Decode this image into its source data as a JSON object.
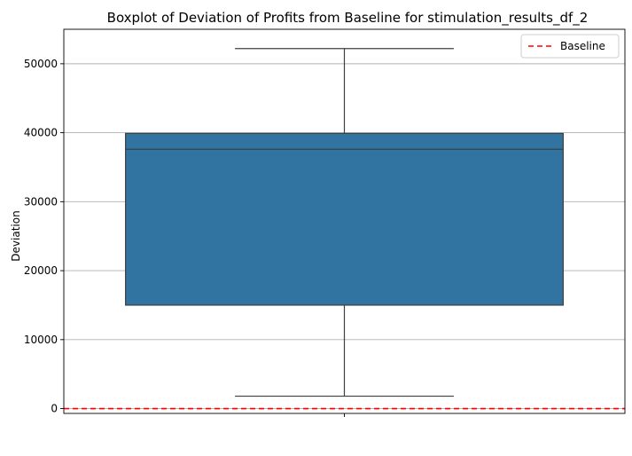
{
  "chart_data": {
    "type": "box",
    "title": "Boxplot of Deviation of Profits from Baseline for stimulation_results_df_2",
    "xlabel": "",
    "ylabel": "Deviation",
    "ylim": [
      -700,
      55000
    ],
    "yticks": [
      0,
      10000,
      20000,
      30000,
      40000,
      50000
    ],
    "ytick_labels": [
      "0",
      "10000",
      "20000",
      "30000",
      "40000",
      "50000"
    ],
    "grid": "horizontal",
    "box": {
      "whisker_low": 1800,
      "q1": 15000,
      "median": 37600,
      "q3": 39900,
      "whisker_high": 52200,
      "color": "#3274a1",
      "edge_color": "#3f3f3f"
    },
    "baseline": {
      "name": "Baseline",
      "value": 0,
      "color": "#ff0000",
      "style": "dashed"
    },
    "legend": {
      "placement": "top-right",
      "entries": [
        "Baseline"
      ]
    }
  }
}
